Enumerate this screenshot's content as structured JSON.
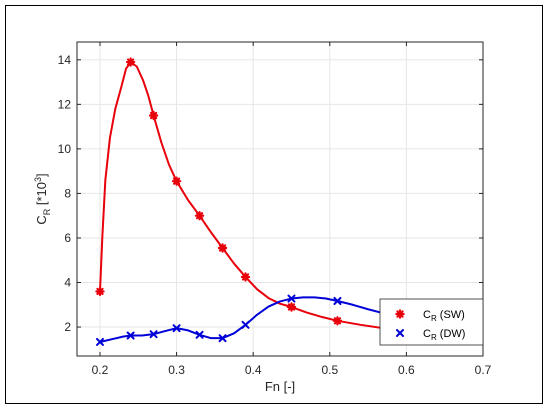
{
  "chart_data": {
    "type": "line",
    "xlabel": "Fn [-]",
    "ylabel": {
      "main": "C",
      "sub": "R",
      "unit_prefix": " [*10",
      "unit_sup": "3",
      "unit_suffix": "]"
    },
    "xlim": [
      0.17,
      0.7
    ],
    "ylim": [
      0.7,
      14.8
    ],
    "x_ticks": [
      0.2,
      0.3,
      0.4,
      0.5,
      0.6,
      0.7
    ],
    "x_tick_labels": [
      "0.2",
      "0.3",
      "0.4",
      "0.5",
      "0.6",
      "0.7"
    ],
    "y_ticks": [
      2,
      4,
      6,
      8,
      10,
      12,
      14
    ],
    "y_tick_labels": [
      "2",
      "4",
      "6",
      "8",
      "10",
      "12",
      "14"
    ],
    "grid": true,
    "legend_position": "bottom-right",
    "series": [
      {
        "name": "C_R (SW)",
        "legend": {
          "main": "C",
          "sub": "R",
          "suffix": " (SW)"
        },
        "color": "#e8000b",
        "marker": "asterisk",
        "points": [
          {
            "x": 0.2,
            "y": 3.6
          },
          {
            "x": 0.24,
            "y": 13.9
          },
          {
            "x": 0.27,
            "y": 11.5
          },
          {
            "x": 0.3,
            "y": 8.55
          },
          {
            "x": 0.33,
            "y": 7.0
          },
          {
            "x": 0.36,
            "y": 5.55
          },
          {
            "x": 0.39,
            "y": 4.25
          },
          {
            "x": 0.45,
            "y": 2.9
          },
          {
            "x": 0.51,
            "y": 2.28
          },
          {
            "x": 0.6,
            "y": 1.82
          }
        ],
        "curve": [
          [
            0.2,
            3.6
          ],
          [
            0.203,
            6.0
          ],
          [
            0.207,
            8.6
          ],
          [
            0.213,
            10.5
          ],
          [
            0.22,
            11.8
          ],
          [
            0.228,
            12.8
          ],
          [
            0.234,
            13.6
          ],
          [
            0.24,
            13.9
          ],
          [
            0.248,
            13.7
          ],
          [
            0.256,
            13.1
          ],
          [
            0.263,
            12.4
          ],
          [
            0.27,
            11.5
          ],
          [
            0.28,
            10.3
          ],
          [
            0.29,
            9.3
          ],
          [
            0.3,
            8.55
          ],
          [
            0.315,
            7.7
          ],
          [
            0.33,
            7.0
          ],
          [
            0.345,
            6.25
          ],
          [
            0.36,
            5.55
          ],
          [
            0.375,
            4.85
          ],
          [
            0.39,
            4.25
          ],
          [
            0.405,
            3.7
          ],
          [
            0.42,
            3.3
          ],
          [
            0.435,
            3.05
          ],
          [
            0.45,
            2.9
          ],
          [
            0.47,
            2.65
          ],
          [
            0.49,
            2.45
          ],
          [
            0.51,
            2.28
          ],
          [
            0.54,
            2.1
          ],
          [
            0.57,
            1.95
          ],
          [
            0.6,
            1.82
          ]
        ]
      },
      {
        "name": "C_R (DW)",
        "legend": {
          "main": "C",
          "sub": "R",
          "suffix": " (DW)"
        },
        "color": "#0000d8",
        "marker": "x",
        "points": [
          {
            "x": 0.2,
            "y": 1.33
          },
          {
            "x": 0.24,
            "y": 1.62
          },
          {
            "x": 0.27,
            "y": 1.68
          },
          {
            "x": 0.3,
            "y": 1.95
          },
          {
            "x": 0.33,
            "y": 1.65
          },
          {
            "x": 0.36,
            "y": 1.5
          },
          {
            "x": 0.39,
            "y": 2.1
          },
          {
            "x": 0.45,
            "y": 3.28
          },
          {
            "x": 0.51,
            "y": 3.17
          }
        ],
        "curve": [
          [
            0.2,
            1.33
          ],
          [
            0.215,
            1.45
          ],
          [
            0.23,
            1.57
          ],
          [
            0.24,
            1.62
          ],
          [
            0.255,
            1.62
          ],
          [
            0.27,
            1.68
          ],
          [
            0.285,
            1.82
          ],
          [
            0.3,
            1.95
          ],
          [
            0.315,
            1.85
          ],
          [
            0.33,
            1.65
          ],
          [
            0.345,
            1.5
          ],
          [
            0.36,
            1.5
          ],
          [
            0.375,
            1.72
          ],
          [
            0.39,
            2.1
          ],
          [
            0.405,
            2.55
          ],
          [
            0.42,
            2.92
          ],
          [
            0.435,
            3.15
          ],
          [
            0.45,
            3.28
          ],
          [
            0.465,
            3.33
          ],
          [
            0.48,
            3.33
          ],
          [
            0.495,
            3.28
          ],
          [
            0.51,
            3.17
          ],
          [
            0.53,
            3.0
          ],
          [
            0.55,
            2.8
          ],
          [
            0.57,
            2.62
          ]
        ]
      }
    ]
  }
}
